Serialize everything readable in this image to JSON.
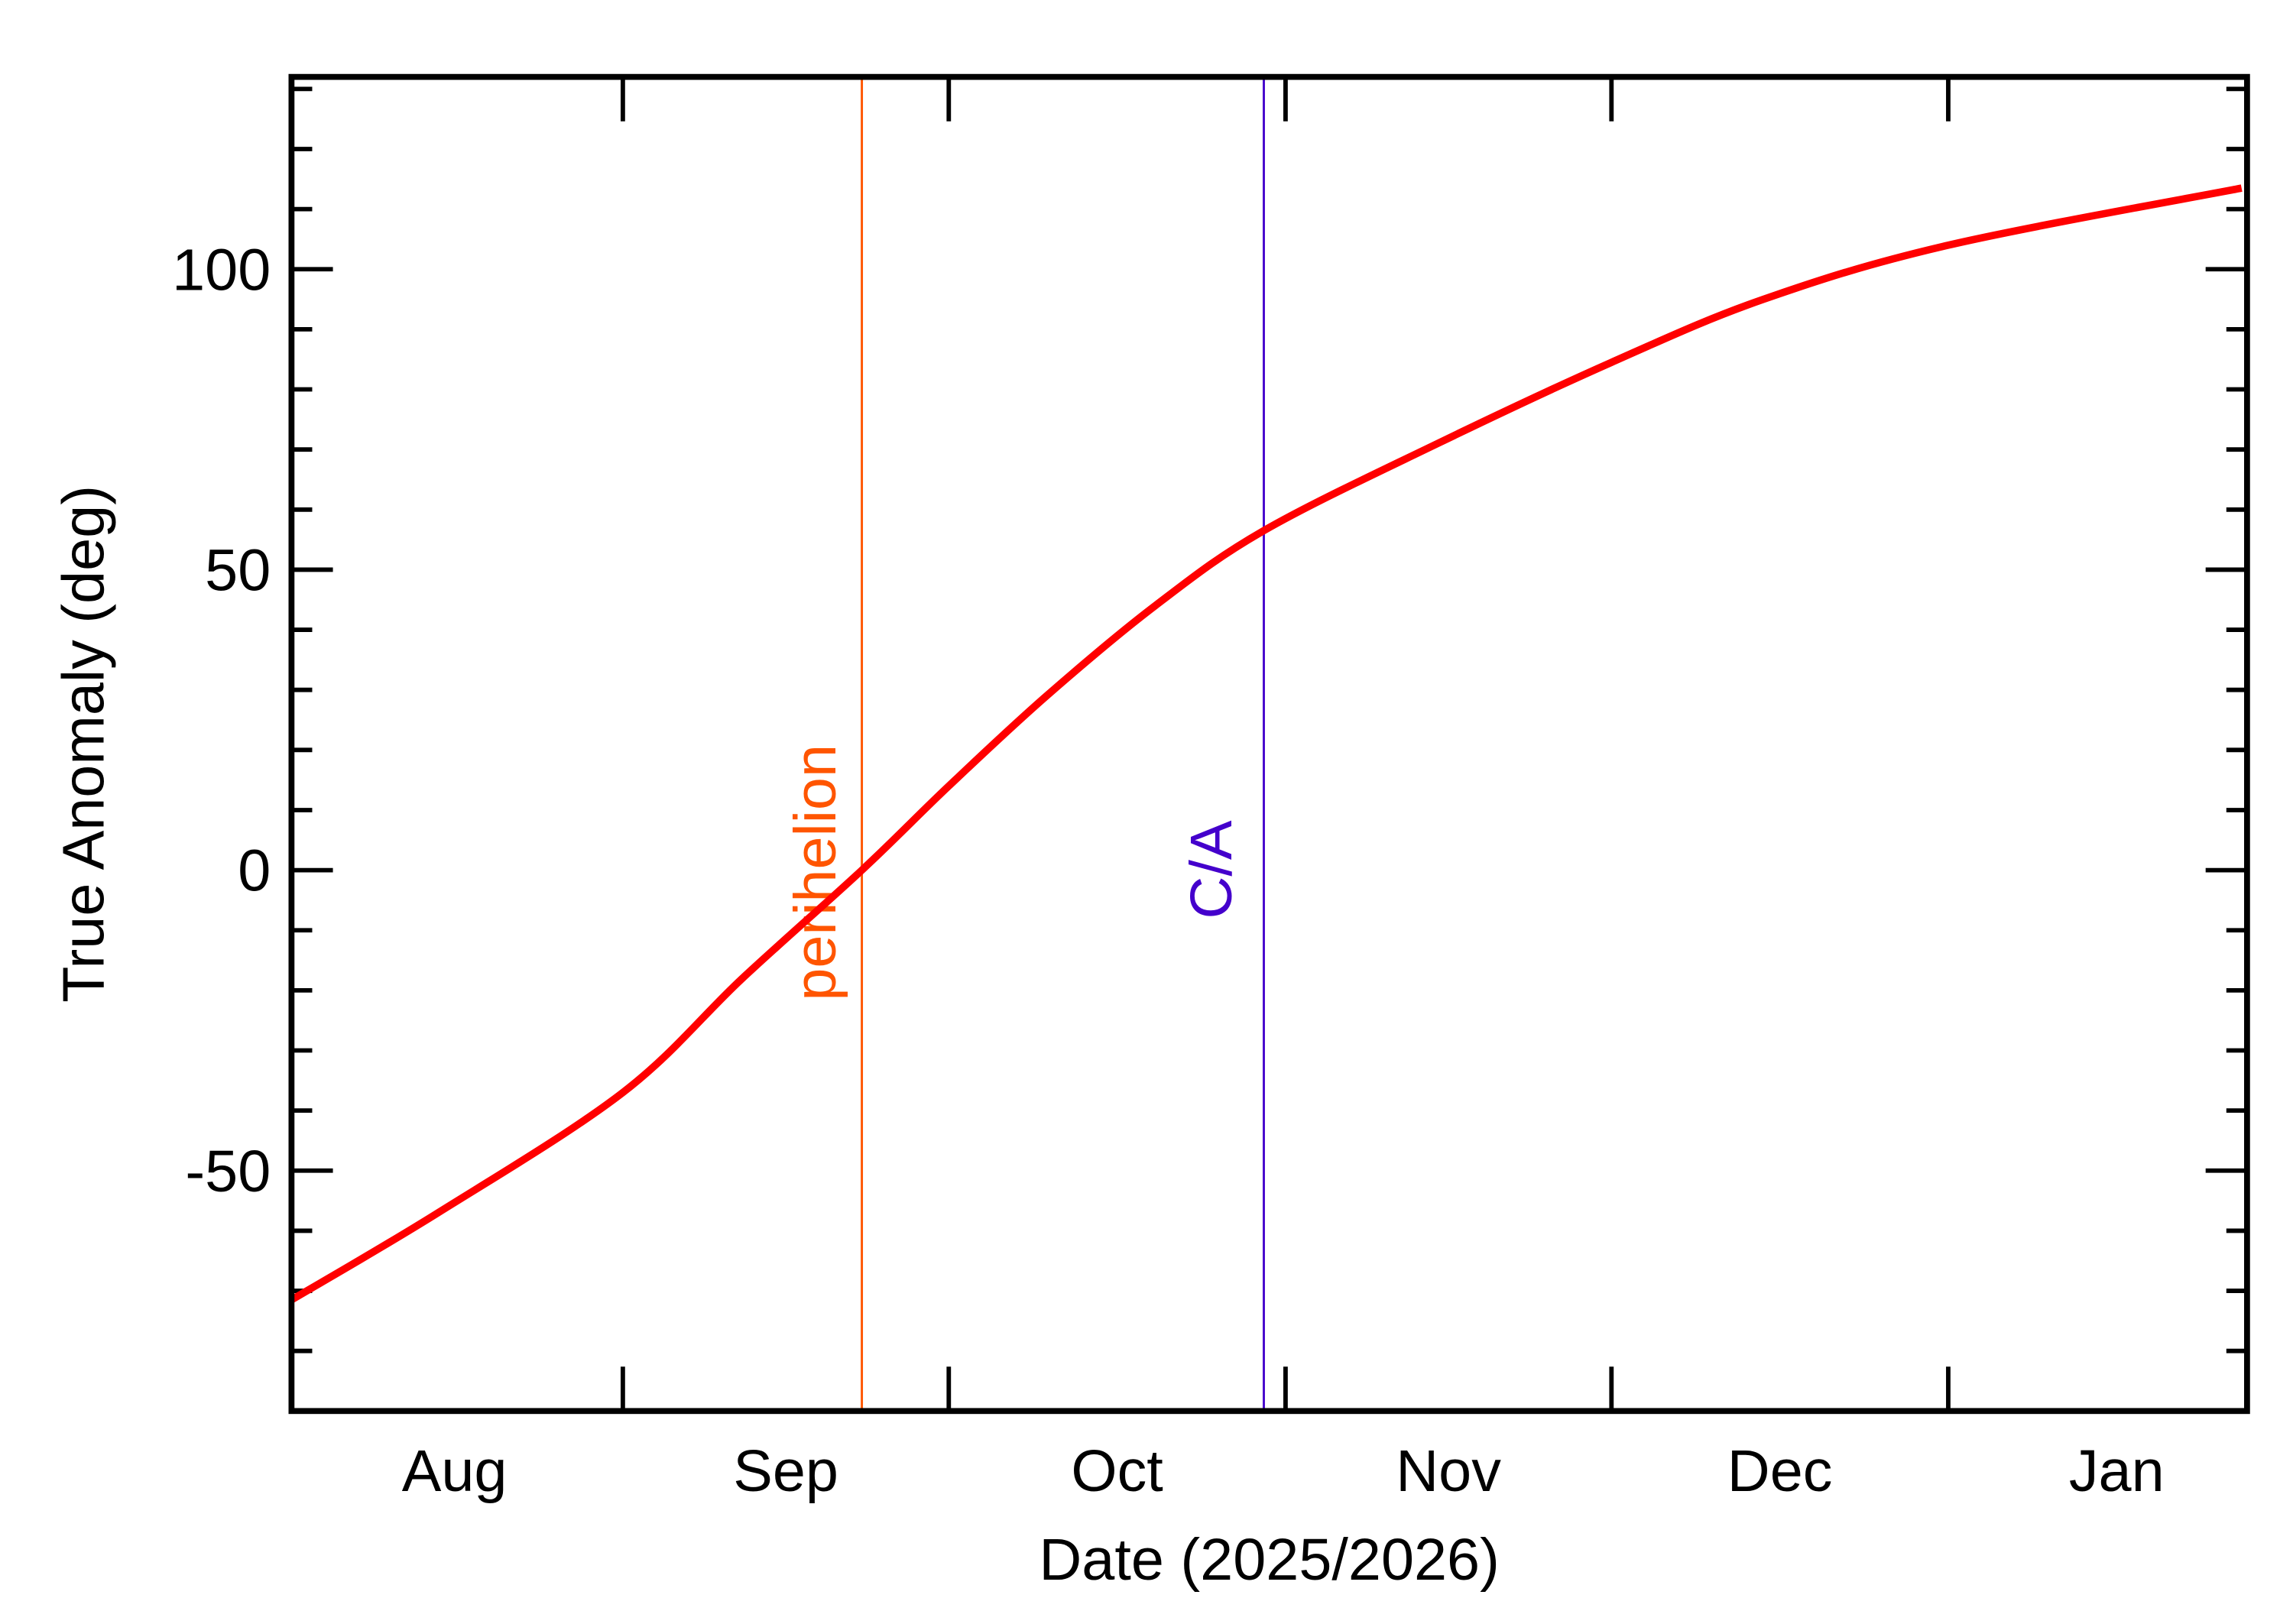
{
  "chart_data": {
    "type": "line",
    "title": "",
    "xlabel": "Date (2025/2026)",
    "ylabel": "True Anomaly (deg)",
    "xlim": [
      "2025-08-01",
      "2026-01-28"
    ],
    "ylim": [
      -90,
      132
    ],
    "x_ticks": [
      {
        "label": "Aug",
        "month_start": "2025-08-01"
      },
      {
        "label": "Sep",
        "month_start": "2025-09-01"
      },
      {
        "label": "Oct",
        "month_start": "2025-10-01"
      },
      {
        "label": "Nov",
        "month_start": "2025-11-01"
      },
      {
        "label": "Dec",
        "month_start": "2025-12-01"
      },
      {
        "label": "Jan",
        "month_start": "2026-01-01"
      }
    ],
    "y_ticks": [
      -50,
      0,
      50,
      100
    ],
    "y_minor_step": 10,
    "grid": false,
    "series": [
      {
        "color": "#ff0000",
        "points": [
          [
            "2025-08-01",
            -71.5
          ],
          [
            "2025-08-15",
            -57
          ],
          [
            "2025-09-01",
            -37
          ],
          [
            "2025-09-12",
            -18
          ],
          [
            "2025-09-23",
            0
          ],
          [
            "2025-10-01",
            14
          ],
          [
            "2025-10-10",
            29
          ],
          [
            "2025-10-20",
            44
          ],
          [
            "2025-10-30",
            56.5
          ],
          [
            "2025-11-15",
            71
          ],
          [
            "2025-12-01",
            84.5
          ],
          [
            "2025-12-15",
            95
          ],
          [
            "2026-01-01",
            104
          ],
          [
            "2026-01-28",
            113.5
          ]
        ]
      }
    ],
    "annotations": [
      {
        "label": "perihelion",
        "date": "2025-09-23",
        "color": "#ff5500"
      },
      {
        "label": "C/A",
        "date": "2025-10-30",
        "color": "#4400cc"
      }
    ]
  }
}
